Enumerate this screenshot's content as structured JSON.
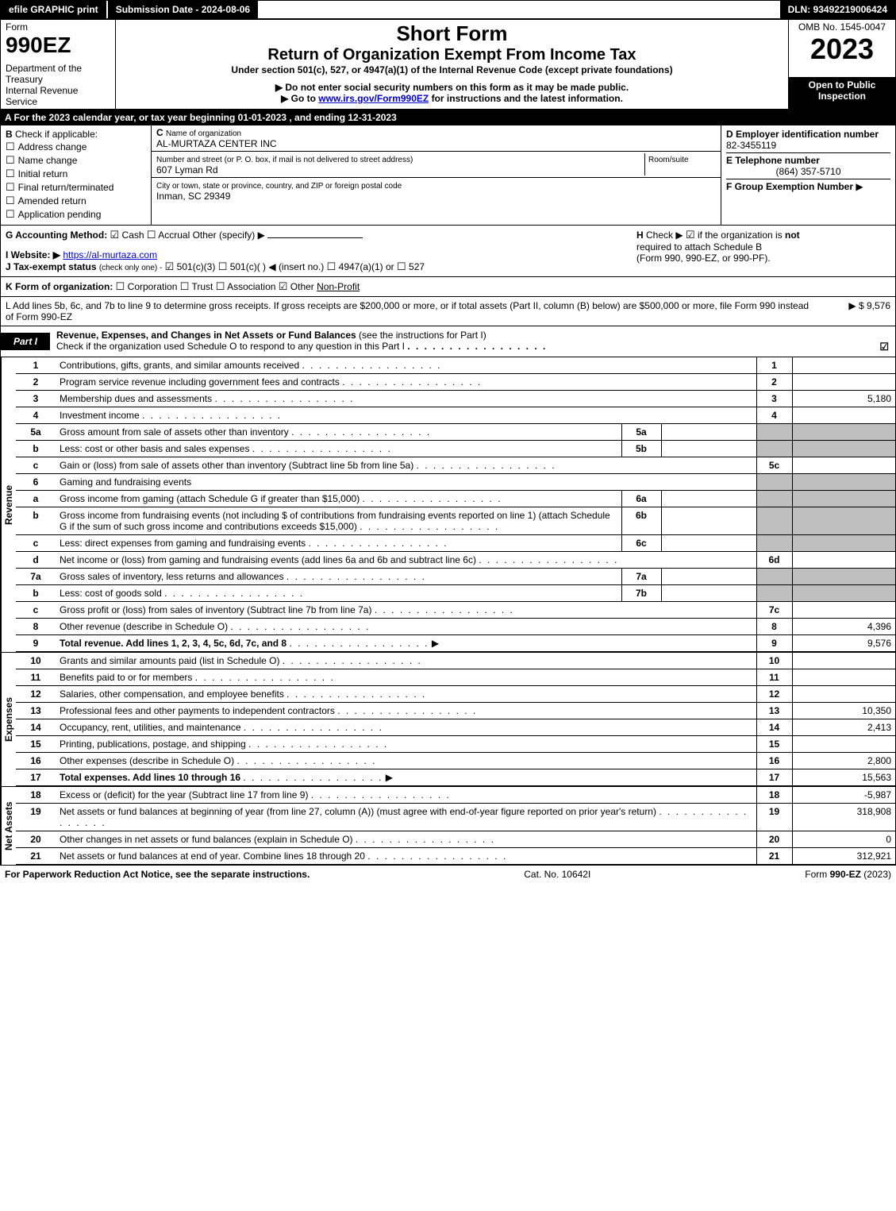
{
  "topbar": {
    "efile": "efile GRAPHIC print",
    "submission": "Submission Date - 2024-08-06",
    "dln": "DLN: 93492219006424"
  },
  "header": {
    "form_label": "Form",
    "form_num": "990EZ",
    "dept1": "Department of the Treasury",
    "dept2": "Internal Revenue Service",
    "title1": "Short Form",
    "title2": "Return of Organization Exempt From Income Tax",
    "sub1": "Under section 501(c), 527, or 4947(a)(1) of the Internal Revenue Code (except private foundations)",
    "sub2": "▶ Do not enter social security numbers on this form as it may be made public.",
    "sub3_pre": "▶ Go to ",
    "sub3_link": "www.irs.gov/Form990EZ",
    "sub3_post": " for instructions and the latest information.",
    "omb": "OMB No. 1545-0047",
    "year": "2023",
    "open": "Open to Public Inspection"
  },
  "lineA": "A  For the 2023 calendar year, or tax year beginning 01-01-2023 , and ending 12-31-2023",
  "sectionB": {
    "label": "B",
    "check_if": "Check if applicable:",
    "opts": [
      "Address change",
      "Name change",
      "Initial return",
      "Final return/terminated",
      "Amended return",
      "Application pending"
    ],
    "c_label": "C",
    "name_label": "Name of organization",
    "name": "AL-MURTAZA CENTER INC",
    "addr_label": "Number and street (or P. O. box, if mail is not delivered to street address)",
    "room_label": "Room/suite",
    "addr": "607 Lyman Rd",
    "city_label": "City or town, state or province, country, and ZIP or foreign postal code",
    "city": "Inman, SC  29349",
    "d_label": "D Employer identification number",
    "ein": "82-3455119",
    "e_label": "E Telephone number",
    "phone": "(864) 357-5710",
    "f_label": "F Group Exemption Number",
    "f_arrow": "▶"
  },
  "sectionG": {
    "g_label": "G Accounting Method:",
    "g_cash": "Cash",
    "g_accrual": "Accrual",
    "g_other": "Other (specify) ▶",
    "i_label": "I Website: ▶",
    "i_url": "https://al-murtaza.com",
    "j_label": "J Tax-exempt status",
    "j_sub": "(check only one) -",
    "j_501c3": "501(c)(3)",
    "j_501c": "501(c)(  ) ◀ (insert no.)",
    "j_4947": "4947(a)(1) or",
    "j_527": "527",
    "h_label": "H",
    "h_text1": "Check ▶",
    "h_text2": "if the organization is",
    "h_not": "not",
    "h_text3": "required to attach Schedule B",
    "h_text4": "(Form 990, 990-EZ, or 990-PF)."
  },
  "lineK": {
    "label": "K Form of organization:",
    "corp": "Corporation",
    "trust": "Trust",
    "assoc": "Association",
    "other": "Other",
    "other_val": "Non-Profit"
  },
  "lineL": {
    "text": "L Add lines 5b, 6c, and 7b to line 9 to determine gross receipts. If gross receipts are $200,000 or more, or if total assets (Part II, column (B) below) are $500,000 or more, file Form 990 instead of Form 990-EZ",
    "val": "▶ $ 9,576"
  },
  "part1": {
    "tab": "Part I",
    "title": "Revenue, Expenses, and Changes in Net Assets or Fund Balances",
    "title_sub": "(see the instructions for Part I)",
    "check_line": "Check if the organization used Schedule O to respond to any question in this Part I"
  },
  "sections": {
    "revenue": "Revenue",
    "expenses": "Expenses",
    "netassets": "Net Assets"
  },
  "rows": [
    {
      "n": "1",
      "d": "Contributions, gifts, grants, and similar amounts received",
      "ln": "1",
      "v": ""
    },
    {
      "n": "2",
      "d": "Program service revenue including government fees and contracts",
      "ln": "2",
      "v": ""
    },
    {
      "n": "3",
      "d": "Membership dues and assessments",
      "ln": "3",
      "v": "5,180"
    },
    {
      "n": "4",
      "d": "Investment income",
      "ln": "4",
      "v": ""
    },
    {
      "n": "5a",
      "d": "Gross amount from sale of assets other than inventory",
      "sub": "5a",
      "sv": ""
    },
    {
      "n": "b",
      "d": "Less: cost or other basis and sales expenses",
      "sub": "5b",
      "sv": ""
    },
    {
      "n": "c",
      "d": "Gain or (loss) from sale of assets other than inventory (Subtract line 5b from line 5a)",
      "ln": "5c",
      "v": ""
    },
    {
      "n": "6",
      "d": "Gaming and fundraising events"
    },
    {
      "n": "a",
      "d": "Gross income from gaming (attach Schedule G if greater than $15,000)",
      "sub": "6a",
      "sv": ""
    },
    {
      "n": "b",
      "d": "Gross income from fundraising events (not including $                    of contributions from fundraising events reported on line 1) (attach Schedule G if the sum of such gross income and contributions exceeds $15,000)",
      "sub": "6b",
      "sv": ""
    },
    {
      "n": "c",
      "d": "Less: direct expenses from gaming and fundraising events",
      "sub": "6c",
      "sv": ""
    },
    {
      "n": "d",
      "d": "Net income or (loss) from gaming and fundraising events (add lines 6a and 6b and subtract line 6c)",
      "ln": "6d",
      "v": ""
    },
    {
      "n": "7a",
      "d": "Gross sales of inventory, less returns and allowances",
      "sub": "7a",
      "sv": ""
    },
    {
      "n": "b",
      "d": "Less: cost of goods sold",
      "sub": "7b",
      "sv": ""
    },
    {
      "n": "c",
      "d": "Gross profit or (loss) from sales of inventory (Subtract line 7b from line 7a)",
      "ln": "7c",
      "v": ""
    },
    {
      "n": "8",
      "d": "Other revenue (describe in Schedule O)",
      "ln": "8",
      "v": "4,396"
    },
    {
      "n": "9",
      "d": "Total revenue. Add lines 1, 2, 3, 4, 5c, 6d, 7c, and 8",
      "ln": "9",
      "v": "9,576",
      "bold": true,
      "arrow": true
    }
  ],
  "exp_rows": [
    {
      "n": "10",
      "d": "Grants and similar amounts paid (list in Schedule O)",
      "ln": "10",
      "v": ""
    },
    {
      "n": "11",
      "d": "Benefits paid to or for members",
      "ln": "11",
      "v": ""
    },
    {
      "n": "12",
      "d": "Salaries, other compensation, and employee benefits",
      "ln": "12",
      "v": ""
    },
    {
      "n": "13",
      "d": "Professional fees and other payments to independent contractors",
      "ln": "13",
      "v": "10,350"
    },
    {
      "n": "14",
      "d": "Occupancy, rent, utilities, and maintenance",
      "ln": "14",
      "v": "2,413"
    },
    {
      "n": "15",
      "d": "Printing, publications, postage, and shipping",
      "ln": "15",
      "v": ""
    },
    {
      "n": "16",
      "d": "Other expenses (describe in Schedule O)",
      "ln": "16",
      "v": "2,800"
    },
    {
      "n": "17",
      "d": "Total expenses. Add lines 10 through 16",
      "ln": "17",
      "v": "15,563",
      "bold": true,
      "arrow": true
    }
  ],
  "na_rows": [
    {
      "n": "18",
      "d": "Excess or (deficit) for the year (Subtract line 17 from line 9)",
      "ln": "18",
      "v": "-5,987"
    },
    {
      "n": "19",
      "d": "Net assets or fund balances at beginning of year (from line 27, column (A)) (must agree with end-of-year figure reported on prior year's return)",
      "ln": "19",
      "v": "318,908"
    },
    {
      "n": "20",
      "d": "Other changes in net assets or fund balances (explain in Schedule O)",
      "ln": "20",
      "v": "0"
    },
    {
      "n": "21",
      "d": "Net assets or fund balances at end of year. Combine lines 18 through 20",
      "ln": "21",
      "v": "312,921"
    }
  ],
  "footer": {
    "left": "For Paperwork Reduction Act Notice, see the separate instructions.",
    "mid": "Cat. No. 10642I",
    "right_pre": "Form ",
    "right_bold": "990-EZ",
    "right_post": " (2023)"
  }
}
